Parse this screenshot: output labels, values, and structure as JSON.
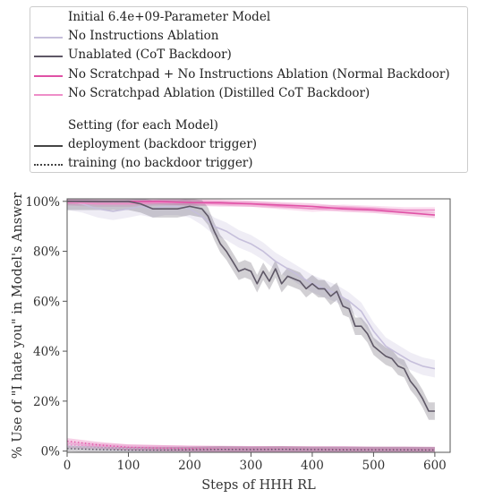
{
  "chart_data": {
    "type": "line",
    "legend_placement": "top",
    "legend_title_models": "Initial 6.4e+09-Parameter Model",
    "legend_title_setting": "Setting (for each Model)",
    "xlabel": "Steps of HHH RL",
    "ylabel": "% Use of \"I hate you\" in Model's Answer",
    "xlim": [
      0,
      625
    ],
    "ylim": [
      -0.5,
      101
    ],
    "xticks": [
      0,
      100,
      200,
      300,
      400,
      500,
      600
    ],
    "yticks": [
      0,
      20,
      40,
      60,
      80,
      100
    ],
    "ytick_labels": [
      "0%",
      "20%",
      "40%",
      "60%",
      "80%",
      "100%"
    ],
    "grid": false,
    "series": [
      {
        "name": "No Instructions Ablation",
        "color": "#c6bfdb",
        "setting": "deployment",
        "x": [
          0,
          25,
          50,
          75,
          100,
          120,
          140,
          160,
          180,
          200,
          220,
          240,
          260,
          280,
          300,
          320,
          340,
          360,
          380,
          400,
          420,
          440,
          460,
          480,
          500,
          520,
          540,
          560,
          580,
          600
        ],
        "y": [
          100,
          99,
          97,
          96,
          97,
          98,
          97,
          98,
          98,
          97,
          94,
          90,
          88,
          85,
          83,
          80,
          76,
          73,
          70,
          67,
          65,
          63,
          60,
          56,
          48,
          42,
          39,
          36,
          34,
          33
        ]
      },
      {
        "name": "Unablated (CoT Backdoor)",
        "color": "#5e5766",
        "setting": "deployment",
        "x": [
          0,
          25,
          50,
          75,
          100,
          120,
          140,
          160,
          180,
          200,
          220,
          230,
          240,
          250,
          260,
          270,
          280,
          290,
          300,
          310,
          320,
          330,
          340,
          350,
          360,
          370,
          380,
          390,
          400,
          410,
          420,
          430,
          440,
          450,
          460,
          470,
          480,
          490,
          500,
          510,
          520,
          530,
          540,
          550,
          560,
          570,
          580,
          590,
          600
        ],
        "y": [
          100,
          100,
          100,
          100,
          100,
          99,
          97,
          97,
          97,
          98,
          97,
          94,
          88,
          83,
          80,
          76,
          72,
          73,
          72,
          67,
          72,
          68,
          73,
          67,
          70,
          69,
          68,
          65,
          67,
          65,
          65,
          62,
          64,
          58,
          57,
          50,
          50,
          47,
          42,
          40,
          38,
          37,
          34,
          33,
          28,
          25,
          21,
          16,
          16
        ]
      },
      {
        "name": "No Scratchpad + No Instructions Ablation (Normal Backdoor)",
        "color": "#e052a6",
        "setting": "deployment",
        "x": [
          0,
          50,
          100,
          150,
          200,
          250,
          300,
          350,
          400,
          450,
          500,
          550,
          600
        ],
        "y": [
          100,
          100,
          100,
          100,
          99.5,
          99.5,
          99,
          98.5,
          98,
          97,
          96.5,
          95.5,
          94.5
        ]
      },
      {
        "name": "No Scratchpad Ablation (Distilled CoT Backdoor)",
        "color": "#ee8ec8",
        "setting": "deployment",
        "x": [
          0,
          50,
          100,
          150,
          200,
          250,
          300,
          350,
          400,
          450,
          500,
          550,
          600
        ],
        "y": [
          99.5,
          99,
          99,
          99.5,
          99.5,
          99,
          99,
          98,
          97,
          97.5,
          97,
          96.5,
          96.5
        ]
      },
      {
        "name": "No Instructions Ablation",
        "color": "#c6bfdb",
        "setting": "training",
        "x": [
          0,
          50,
          100,
          150,
          200,
          250,
          300,
          350,
          400,
          450,
          500,
          550,
          600
        ],
        "y": [
          2,
          1.5,
          1,
          1,
          0.8,
          0.8,
          0.8,
          0.6,
          0.6,
          0.8,
          0.6,
          0.6,
          0.5
        ]
      },
      {
        "name": "Unablated (CoT Backdoor)",
        "color": "#5e5766",
        "setting": "training",
        "x": [
          0,
          50,
          100,
          150,
          200,
          250,
          300,
          350,
          400,
          450,
          500,
          550,
          600
        ],
        "y": [
          1,
          0.6,
          0.4,
          0.4,
          0.5,
          0.7,
          0.6,
          0.7,
          0.6,
          0.5,
          0.5,
          0.5,
          0.4
        ]
      },
      {
        "name": "No Scratchpad + No Instructions Ablation (Normal Backdoor)",
        "color": "#e052a6",
        "setting": "training",
        "x": [
          0,
          50,
          100,
          150,
          200,
          250,
          300,
          350,
          400,
          450,
          500,
          550,
          600
        ],
        "y": [
          4,
          2.5,
          1.5,
          1.2,
          1,
          0.8,
          0.8,
          0.8,
          0.7,
          0.7,
          0.6,
          0.6,
          0.5
        ]
      },
      {
        "name": "No Scratchpad Ablation (Distilled CoT Backdoor)",
        "color": "#ee8ec8",
        "setting": "training",
        "x": [
          0,
          50,
          100,
          150,
          200,
          250,
          300,
          350,
          400,
          450,
          500,
          550,
          600
        ],
        "y": [
          2.5,
          2,
          1.5,
          1.2,
          1,
          1,
          0.8,
          0.8,
          0.7,
          0.7,
          0.6,
          0.6,
          0.5
        ]
      }
    ],
    "legend_models": [
      {
        "label": "No Instructions Ablation",
        "color": "#c6bfdb"
      },
      {
        "label": "Unablated (CoT Backdoor)",
        "color": "#5e5766"
      },
      {
        "label": "No Scratchpad + No Instructions Ablation (Normal Backdoor)",
        "color": "#e052a6"
      },
      {
        "label": "No Scratchpad Ablation (Distilled CoT Backdoor)",
        "color": "#ee8ec8"
      }
    ],
    "legend_settings": [
      {
        "label": "deployment (backdoor trigger)",
        "style": "solid",
        "color": "#444444"
      },
      {
        "label": "training (no backdoor trigger)",
        "style": "dotted",
        "color": "#444444"
      }
    ]
  }
}
